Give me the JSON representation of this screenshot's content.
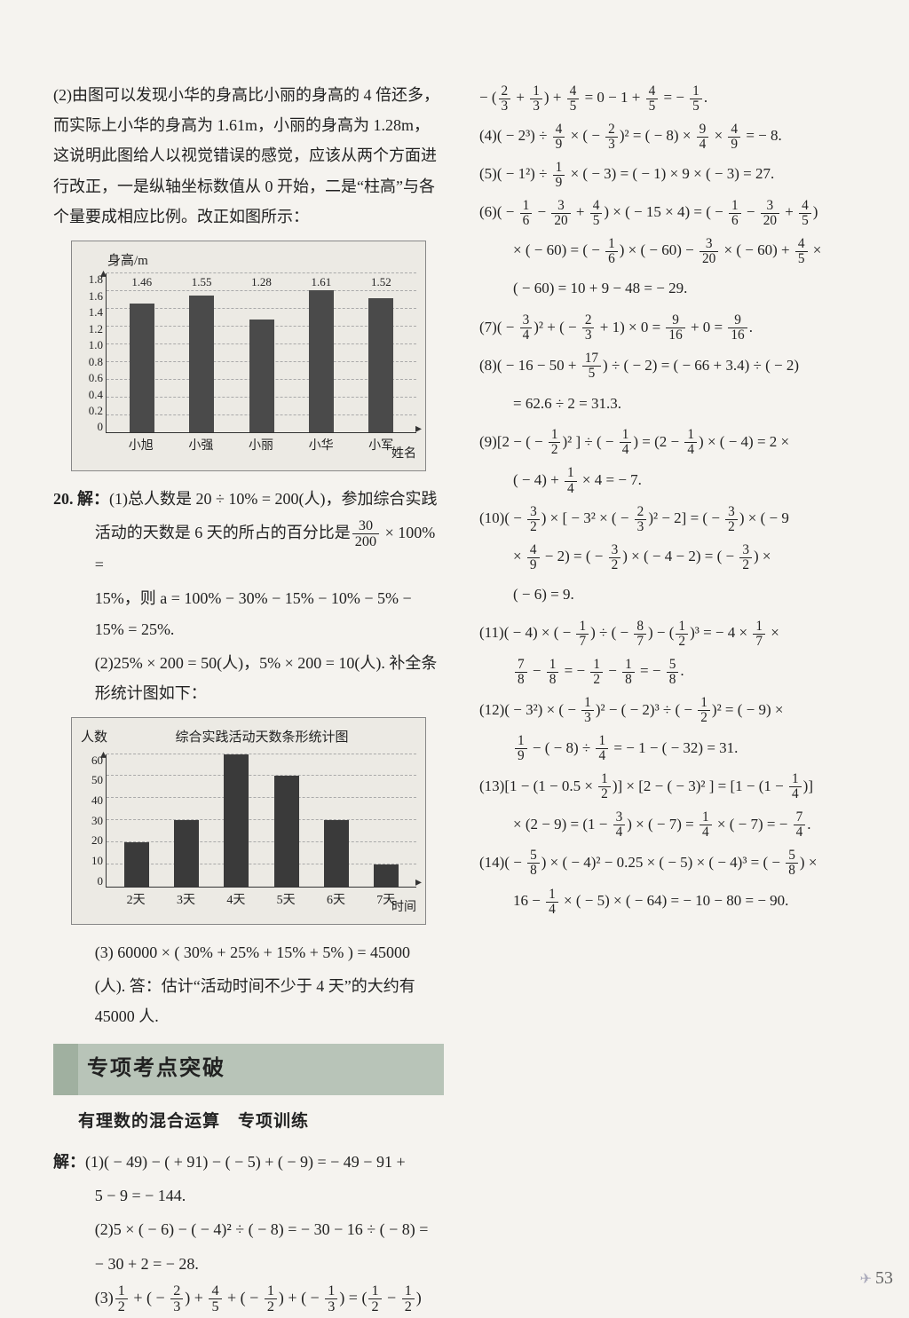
{
  "left": {
    "p1": "(2)由图可以发现小华的身高比小丽的身高的 4 倍还多，而实际上小华的身高为 1.61m，小丽的身高为 1.28m，这说明此图给人以视觉错误的感觉，应该从两个方面进行改正，一是纵轴坐标数值从 0 开始，二是“柱高”与各个量要成相应比例。改正如图所示：",
    "chart1": {
      "y_axis_label": "身高/m",
      "x_axis_label": "姓名",
      "y_ticks": [
        "0",
        "0.2",
        "0.4",
        "0.6",
        "0.8",
        "1.0",
        "1.2",
        "1.4",
        "1.6",
        "1.8"
      ],
      "y_max": 1.8,
      "bars": [
        {
          "label": "小旭",
          "value": 1.46,
          "top": "1.46"
        },
        {
          "label": "小强",
          "value": 1.55,
          "top": "1.55"
        },
        {
          "label": "小丽",
          "value": 1.28,
          "top": "1.28"
        },
        {
          "label": "小华",
          "value": 1.61,
          "top": "1.61"
        },
        {
          "label": "小军",
          "value": 1.52,
          "top": "1.52"
        }
      ],
      "bar_color": "#4a4a4a",
      "bg": "#eceae4"
    },
    "q20_label": "20. 解：",
    "q20_1a": "(1)总人数是 20 ÷ 10% = 200(人)，参加综合实践",
    "q20_1b": "活动的天数是 6 天的所占的百分比是",
    "q20_1b_frac_n": "30",
    "q20_1b_frac_d": "200",
    "q20_1b_tail": " × 100% =",
    "q20_1c": "15%，则 a = 100% − 30% − 15% − 10% − 5% − 15% = 25%.",
    "q20_2": "(2)25% × 200 = 50(人)，5% × 200 = 10(人). 补全条形统计图如下：",
    "chart2": {
      "title": "综合实践活动天数条形统计图",
      "y_axis_label": "人数",
      "x_axis_label": "时间",
      "y_ticks": [
        "0",
        "10",
        "20",
        "30",
        "40",
        "50",
        "60"
      ],
      "y_max": 60,
      "bars": [
        {
          "label": "2天",
          "value": 20
        },
        {
          "label": "3天",
          "value": 30
        },
        {
          "label": "4天",
          "value": 60
        },
        {
          "label": "5天",
          "value": 50
        },
        {
          "label": "6天",
          "value": 30
        },
        {
          "label": "7天",
          "value": 10
        }
      ],
      "bar_color": "#3a3a3a",
      "bg": "#eceae4"
    },
    "q20_3a": "(3) 60000 × ( 30% + 25% + 15% + 5% ) = 45000",
    "q20_3b": "(人). 答：估计“活动时间不少于 4 天”的大约有 45000 人.",
    "section_title": "专项考点突破",
    "sub_title": "有理数的混合运算　专项训练",
    "sol_label": "解：",
    "s1a": "(1)( − 49) − ( + 91) − ( − 5) + ( − 9) = − 49 − 91 +",
    "s1b": "5 − 9 = − 144.",
    "s2a": "(2)5 × ( − 6) − ( − 4)² ÷ ( − 8) = − 30 − 16 ÷ ( − 8) =",
    "s2b": "− 30 + 2 = − 28.",
    "s3": "(3)"
  },
  "right": {
    "r3b": "= 0 − 1 +",
    "r3c": "= −",
    "r4": "(4)( − 2³) ÷",
    "r4b": "× ( −",
    "r4c": ")² = ( − 8) ×",
    "r4d": "×",
    "r4e": "= − 8.",
    "r5": "(5)( − 1²) ÷",
    "r5b": "× ( − 3) = ( − 1) × 9 × ( − 3) = 27.",
    "r6": "(6)( −",
    "r6b": "−",
    "r6c": "+",
    "r6d": ") × ( − 15 × 4) = ( −",
    "r6e": "−",
    "r6f": "+",
    "r6g": ")",
    "r6h": "× ( − 60) = ( −",
    "r6i": ") × ( − 60) −",
    "r6j": "× ( − 60) +",
    "r6k": "×",
    "r6l": "( − 60) = 10 + 9 − 48 = − 29.",
    "r7": "(7)( −",
    "r7b": ")² + ( −",
    "r7c": "+ 1) × 0 =",
    "r7d": "+ 0 =",
    "r8": "(8)( − 16 − 50 +",
    "r8b": ") ÷ ( − 2) = ( − 66 + 3.4) ÷ ( − 2)",
    "r8c": "= 62.6 ÷ 2 = 31.3.",
    "r9": "(9)[2 − ( −",
    "r9b": ")² ] ÷ ( −",
    "r9c": ") = (2 −",
    "r9d": ") × ( − 4) = 2 ×",
    "r9e": "( − 4) +",
    "r9f": "× 4 = − 7.",
    "r10": "(10)( −",
    "r10b": ") × [ − 3² × ( −",
    "r10c": ")² − 2] = ( −",
    "r10d": ") × ( − 9",
    "r10e": "×",
    "r10f": "− 2) = ( −",
    "r10g": ") × ( − 4 − 2) = ( −",
    "r10h": ") ×",
    "r10i": "( − 6) = 9.",
    "r11": "(11)( − 4) × ( −",
    "r11b": ") ÷ ( −",
    "r11c": ") − (",
    "r11d": ")³ = − 4 ×",
    "r11e": "×",
    "r11f": "−",
    "r11g": "= −",
    "r11h": "−",
    "r11i": "= −",
    "r12": "(12)( − 3²) × ( −",
    "r12b": ")² − ( − 2)³ ÷ ( −",
    "r12c": ")² = ( − 9) ×",
    "r12d": "− ( − 8) ÷",
    "r12e": "= − 1 − ( − 32) = 31.",
    "r13": "(13)[1 − (1 − 0.5 ×",
    "r13b": ")] × [2 − ( − 3)² ] = [1 − (1 −",
    "r13c": ")]",
    "r13d": "× (2 − 9) = (1 −",
    "r13e": ") × ( − 7) =",
    "r13f": "× ( − 7) = −",
    "r14": "(14)( −",
    "r14b": ") × ( − 4)² − 0.25 × ( − 5) × ( − 4)³ = ( −",
    "r14c": ") ×",
    "r14d": "16 −",
    "r14e": "× ( − 5) × ( − 64) = − 10 − 80 = − 90."
  },
  "page_number": "53"
}
